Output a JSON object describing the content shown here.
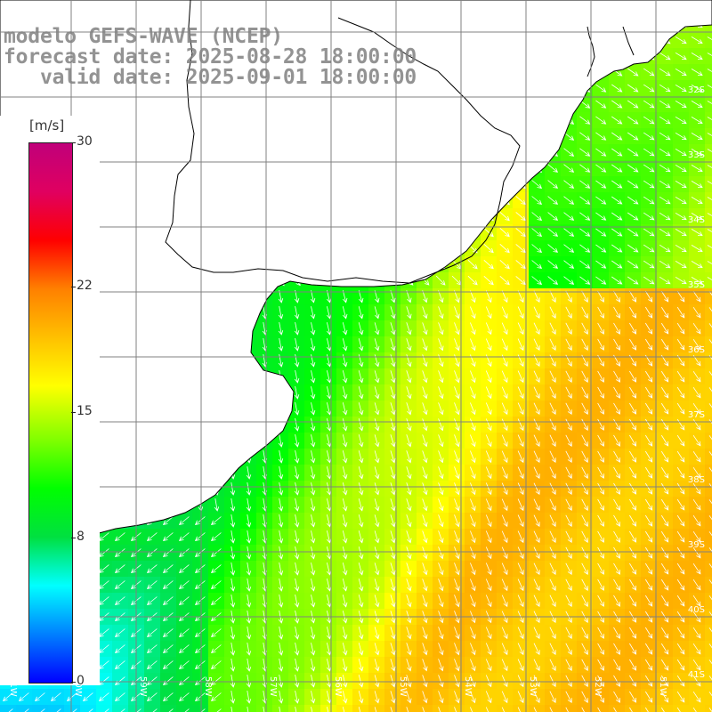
{
  "titles": {
    "line1": "modelo GEFS-WAVE (NCEP)",
    "line2": "forecast date: 2025-08-28 18:00:00",
    "line3": "   valid date: 2025-09-01 18:00:00"
  },
  "colorbar": {
    "unit": "[m/s]",
    "ticks": [
      "30",
      "22",
      "15",
      "8",
      "0"
    ],
    "tick_values": [
      30,
      22,
      15,
      8,
      0
    ],
    "colors": [
      "#0000ff",
      "#0080ff",
      "#00ffff",
      "#00e040",
      "#00ff00",
      "#80ff00",
      "#ffff00",
      "#ffc000",
      "#ff8000",
      "#ff0000",
      "#e00060",
      "#c0007a"
    ]
  },
  "map": {
    "lat_labels": [
      "32S",
      "33S",
      "34S",
      "35S",
      "36S",
      "37S",
      "38S",
      "39S",
      "40S",
      "41S"
    ],
    "lon_labels": [
      "61W",
      "60W",
      "59W",
      "58W",
      "57W",
      "56W",
      "55W",
      "54W",
      "53W",
      "52W",
      "51W"
    ],
    "lon_range": [
      -61,
      -50.2
    ],
    "lat_range": [
      -41.2,
      -30.8
    ],
    "variable": "wind speed with direction arrows",
    "land_color": "#ffffff",
    "grid_color": "#808080"
  }
}
